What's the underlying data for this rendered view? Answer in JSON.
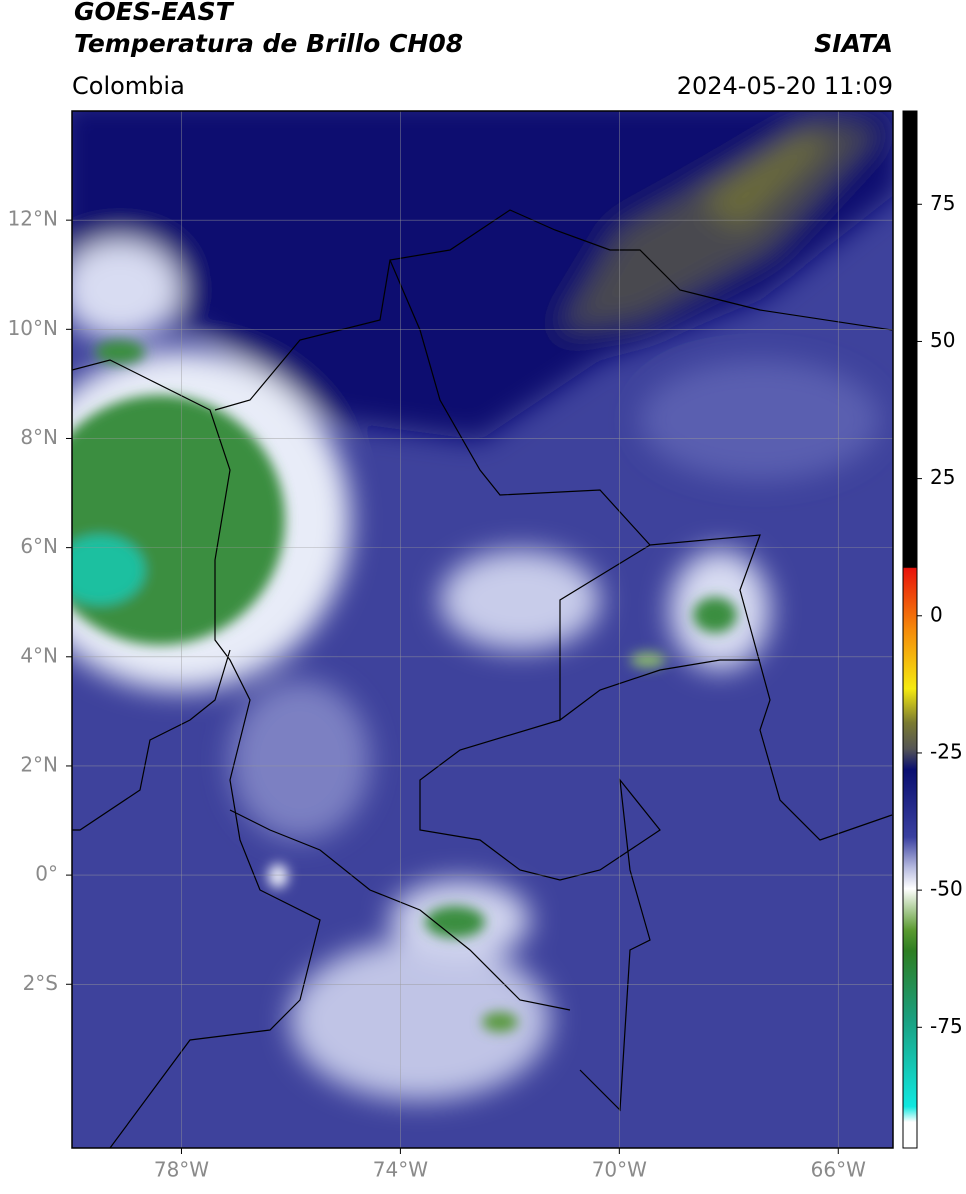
{
  "header": {
    "title": "GOES-EAST",
    "subtitle": "Temperatura de Brillo CH08",
    "source": "SIATA",
    "region": "Colombia",
    "datetime": "2024-05-20 11:09"
  },
  "map": {
    "xlim": [
      -80,
      -65
    ],
    "ylim": [
      -5,
      14
    ],
    "xticks": [
      {
        "value": -78,
        "label": "78°W"
      },
      {
        "value": -74,
        "label": "74°W"
      },
      {
        "value": -70,
        "label": "70°W"
      },
      {
        "value": -66,
        "label": "66°W"
      }
    ],
    "yticks": [
      {
        "value": -2,
        "label": "2°S"
      },
      {
        "value": 0,
        "label": "0°"
      },
      {
        "value": 2,
        "label": "2°N"
      },
      {
        "value": 4,
        "label": "4°N"
      },
      {
        "value": 6,
        "label": "6°N"
      },
      {
        "value": 8,
        "label": "8°N"
      },
      {
        "value": 10,
        "label": "10°N"
      },
      {
        "value": 12,
        "label": "12°N"
      }
    ],
    "grid": true
  },
  "colorbar": {
    "lim": [
      -97,
      92
    ],
    "ticks": [
      -75,
      -50,
      -25,
      0,
      25,
      50,
      75
    ]
  }
}
